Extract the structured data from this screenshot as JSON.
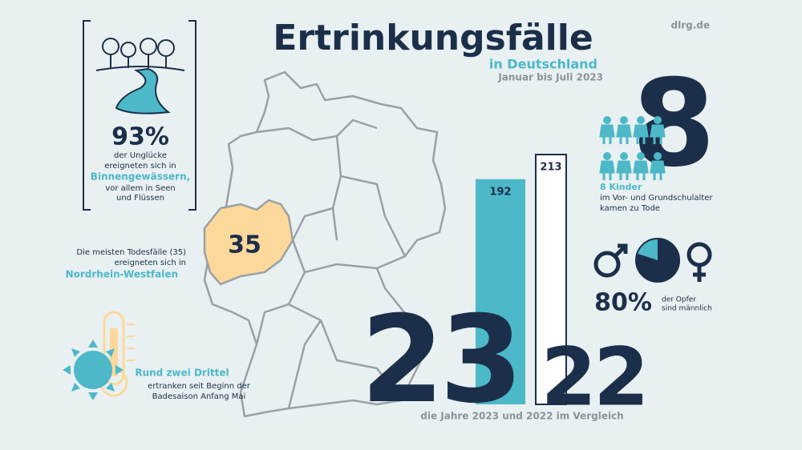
{
  "header": {
    "title": "Ertrinkungsfälle",
    "subtitle": "in Deutschland",
    "period": "Januar bis Juli 2023",
    "source": "dlrg.de"
  },
  "inland": {
    "value": "93%",
    "lines": [
      "der Unglücke",
      "ereigneten sich in"
    ],
    "highlight": "Binnengewässern,",
    "lines2": [
      "vor allem in Seen",
      "und Flüssen"
    ]
  },
  "state": {
    "count": "35",
    "lines": [
      "Die meisten Todesfälle (35)",
      "ereigneten sich in"
    ],
    "name": "Nordrhein-Westfalen"
  },
  "season": {
    "highlight": "Rund zwei Drittel",
    "lines": [
      "ertranken seit Beginn der",
      "Badesaison Anfang Mai"
    ]
  },
  "comparison": {
    "bars": [
      {
        "year": "23",
        "value": 192
      },
      {
        "year": "22",
        "value": 213
      }
    ],
    "caption": "die Jahre 2023 und 2022 im Vergleich"
  },
  "children": {
    "value": 8,
    "title": "8 Kinder",
    "lines": [
      "im Vor- und Grundschulalter",
      "kamen zu Tode"
    ]
  },
  "gender": {
    "value": 80,
    "label": "80%",
    "lines": [
      "der Opfer",
      "sind männlich"
    ]
  }
}
